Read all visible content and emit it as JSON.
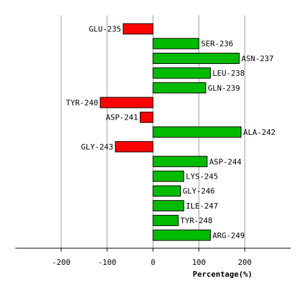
{
  "chart_data": {
    "type": "bar",
    "orientation": "horizontal",
    "categories": [
      "GLU-235",
      "SER-236",
      "ASN-237",
      "LEU-238",
      "GLN-239",
      "TYR-240",
      "ASP-241",
      "ALA-242",
      "GLY-243",
      "ASP-244",
      "LYS-245",
      "GLY-246",
      "ILE-247",
      "TYR-248",
      "ARG-249"
    ],
    "values": [
      -65,
      100,
      188,
      125,
      115,
      -115,
      -28,
      192,
      -82,
      118,
      67,
      60,
      67,
      55,
      125
    ],
    "xlabel": "Percentage(%)",
    "xlim": [
      -300,
      300
    ],
    "xticks": [
      -200,
      -100,
      0,
      100,
      200
    ],
    "xtick_labels": [
      "-200",
      "-100",
      "0",
      "100",
      "200"
    ],
    "grid": "vertical",
    "colors": {
      "positive": "#00bb00",
      "negative": "#ff0000",
      "grid": "#999999",
      "axis": "#000000",
      "bar_border": "#000000"
    }
  }
}
